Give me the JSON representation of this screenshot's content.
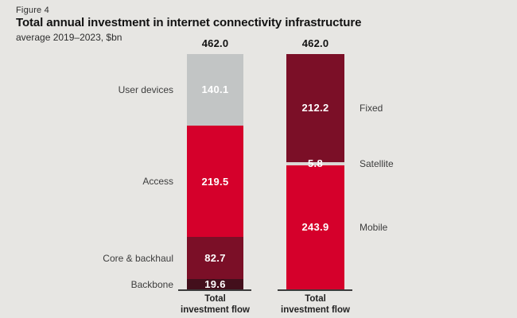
{
  "figure_label": "Figure 4",
  "title": "Total annual investment in internet connectivity infrastructure",
  "subtitle": "average 2019–2023, $bn",
  "colors": {
    "background": "#e7e6e3",
    "red": "#d5002b",
    "dark_red": "#7b0f27",
    "darkest_red": "#430f1c",
    "gray_segment": "#c2c5c5",
    "satellite_strip": "#dad7d4",
    "value_text": "#ffffff",
    "baseline": "#3b3b3b"
  },
  "chart_data": {
    "type": "bar",
    "subtype": "stacked-vertical",
    "unit": "$bn",
    "title": "Total annual investment in internet connectivity infrastructure",
    "subtitle": "average 2019-2023, $bn",
    "total": 462.0,
    "ylim": [
      0,
      462
    ],
    "grid": false,
    "legend_position": "segment-side-labels",
    "bars": [
      {
        "total_label": "462.0",
        "x_label_lines": [
          "Total",
          "investment flow"
        ],
        "labels_side": "left",
        "segments": [
          {
            "label": "User devices",
            "value": 140.1,
            "value_label": "140.1",
            "color_key": "gray_segment"
          },
          {
            "label": "Access",
            "value": 219.5,
            "value_label": "219.5",
            "color_key": "red"
          },
          {
            "label": "Core & backhaul",
            "value": 82.7,
            "value_label": "82.7",
            "color_key": "dark_red"
          },
          {
            "label": "Backbone",
            "value": 19.6,
            "value_label": "19.6",
            "color_key": "darkest_red"
          }
        ]
      },
      {
        "total_label": "462.0",
        "x_label_lines": [
          "Total",
          "investment flow"
        ],
        "labels_side": "right",
        "segments": [
          {
            "label": "Fixed",
            "value": 212.2,
            "value_label": "212.2",
            "color_key": "dark_red"
          },
          {
            "label": "Satellite",
            "value": 5.8,
            "value_label": "5.8",
            "color_key": "satellite_strip"
          },
          {
            "label": "Mobile",
            "value": 243.9,
            "value_label": "243.9",
            "color_key": "red"
          }
        ]
      }
    ]
  }
}
